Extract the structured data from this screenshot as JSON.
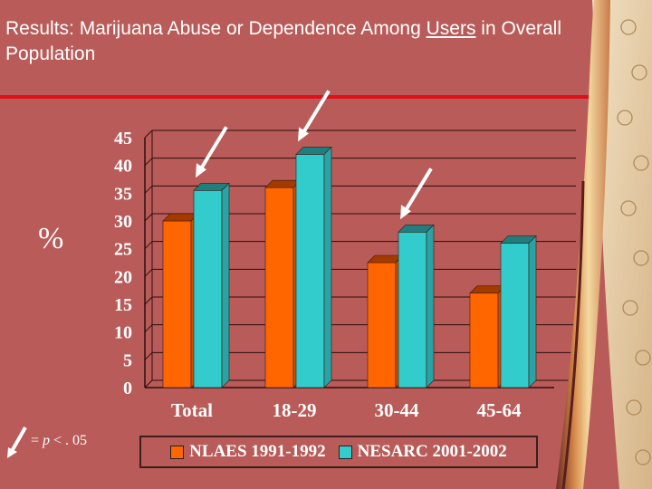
{
  "title": {
    "before": "Results:  Marijuana Abuse or Dependence Among ",
    "underlined": "Users",
    "after": " in Overall Population"
  },
  "percent_label": "%",
  "footnote": {
    "symbol": "=",
    "p": "p",
    "rest": " < . 05"
  },
  "colors": {
    "nlaes": "#ff6600",
    "nesarc": "#33cccc",
    "arrow": "#ffffff"
  },
  "chart_data": {
    "type": "bar",
    "title": "",
    "xlabel": "",
    "ylabel": "%",
    "ylim": [
      0,
      45
    ],
    "yticks": [
      0,
      5,
      10,
      15,
      20,
      25,
      30,
      35,
      40,
      45
    ],
    "categories": [
      "Total",
      "18-29",
      "30-44",
      "45-64"
    ],
    "series": [
      {
        "name": "NLAES 1991-1992",
        "values": [
          30,
          36,
          22.5,
          17
        ]
      },
      {
        "name": "NESARC 2001-2002",
        "values": [
          35.5,
          42,
          28,
          26
        ]
      }
    ],
    "significant_marks": [
      {
        "category": "Total",
        "series": "NESARC 2001-2002"
      },
      {
        "category": "18-29",
        "series": "NESARC 2001-2002"
      },
      {
        "category": "30-44",
        "series": "NESARC 2001-2002"
      }
    ],
    "legend": {
      "position": "bottom"
    }
  }
}
